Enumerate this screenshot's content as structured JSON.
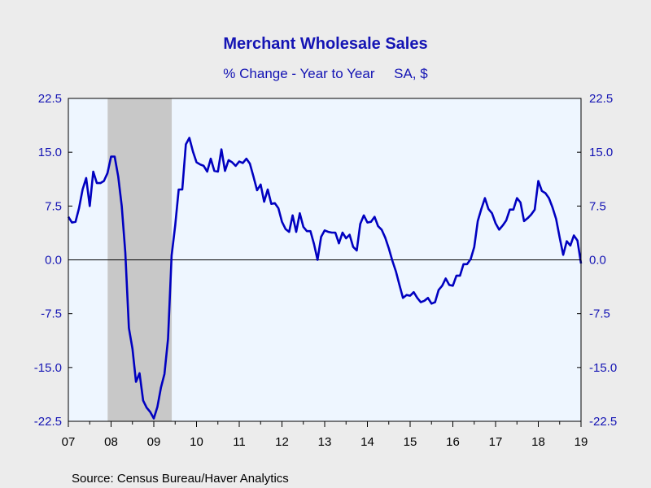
{
  "chart_data": {
    "type": "line",
    "title": "Merchant Wholesale Sales",
    "subtitle": "% Change - Year to Year     SA, $",
    "source": "Source:  Census Bureau/Haver Analytics",
    "ylim": [
      -22.5,
      22.5
    ],
    "yticks": [
      "22.5",
      "15.0",
      "7.5",
      "0.0",
      "-7.5",
      "-15.0",
      "-22.5"
    ],
    "ytick_values": [
      22.5,
      15.0,
      7.5,
      0.0,
      -7.5,
      -15.0,
      -22.5
    ],
    "xlim": [
      2007.0,
      2019.0
    ],
    "xticks": [
      "07",
      "08",
      "09",
      "10",
      "11",
      "12",
      "13",
      "14",
      "15",
      "16",
      "17",
      "18",
      "19"
    ],
    "xtick_values": [
      2007,
      2008,
      2009,
      2010,
      2011,
      2012,
      2013,
      2014,
      2015,
      2016,
      2017,
      2018,
      2019
    ],
    "recession": [
      2007.92,
      2009.42
    ],
    "grid": false,
    "colors": {
      "line": "#0000C0",
      "text": "#1414B4",
      "plot_bg": "#EEF6FF",
      "recession": "#C8C8C8",
      "page_bg": "#ECECEC"
    },
    "series": [
      {
        "x": [
          2007.0,
          2007.083,
          2007.167,
          2007.25,
          2007.333,
          2007.417,
          2007.5,
          2007.583,
          2007.667,
          2007.75,
          2007.833,
          2007.917,
          2008.0,
          2008.083,
          2008.167,
          2008.25,
          2008.333,
          2008.417,
          2008.5,
          2008.583,
          2008.667,
          2008.75,
          2008.833,
          2008.917,
          2009.0,
          2009.083,
          2009.167,
          2009.25,
          2009.333,
          2009.417,
          2009.5,
          2009.583,
          2009.667,
          2009.75,
          2009.833,
          2009.917,
          2010.0,
          2010.083,
          2010.167,
          2010.25,
          2010.333,
          2010.417,
          2010.5,
          2010.583,
          2010.667,
          2010.75,
          2010.833,
          2010.917,
          2011.0,
          2011.083,
          2011.167,
          2011.25,
          2011.333,
          2011.417,
          2011.5,
          2011.583,
          2011.667,
          2011.75,
          2011.833,
          2011.917,
          2012.0,
          2012.083,
          2012.167,
          2012.25,
          2012.333,
          2012.417,
          2012.5,
          2012.583,
          2012.667,
          2012.75,
          2012.833,
          2012.917,
          2013.0,
          2013.083,
          2013.167,
          2013.25,
          2013.333,
          2013.417,
          2013.5,
          2013.583,
          2013.667,
          2013.75,
          2013.833,
          2013.917,
          2014.0,
          2014.083,
          2014.167,
          2014.25,
          2014.333,
          2014.417,
          2014.5,
          2014.583,
          2014.667,
          2014.75,
          2014.833,
          2014.917,
          2015.0,
          2015.083,
          2015.167,
          2015.25,
          2015.333,
          2015.417,
          2015.5,
          2015.583,
          2015.667,
          2015.75,
          2015.833,
          2015.917,
          2016.0,
          2016.083,
          2016.167,
          2016.25,
          2016.333,
          2016.417,
          2016.5,
          2016.583,
          2016.667,
          2016.75,
          2016.833,
          2016.917,
          2017.0,
          2017.083,
          2017.167,
          2017.25,
          2017.333,
          2017.417,
          2017.5,
          2017.583,
          2017.667,
          2017.75,
          2017.833,
          2017.917,
          2018.0,
          2018.083,
          2018.167,
          2018.25,
          2018.333,
          2018.417,
          2018.5,
          2018.583,
          2018.667,
          2018.75,
          2018.833,
          2018.917,
          2019.0
        ],
        "values": [
          6.0,
          5.2,
          5.3,
          7.2,
          9.8,
          11.4,
          7.5,
          12.3,
          10.7,
          10.7,
          11.0,
          12.1,
          14.4,
          14.4,
          11.6,
          7.5,
          1.0,
          -9.5,
          -12.4,
          -17.0,
          -15.8,
          -19.6,
          -20.6,
          -21.2,
          -22.1,
          -20.5,
          -17.8,
          -15.9,
          -11.0,
          0.6,
          4.8,
          9.8,
          9.8,
          16.1,
          17.0,
          15.1,
          13.6,
          13.3,
          13.1,
          12.3,
          14.1,
          12.4,
          12.3,
          15.4,
          12.4,
          13.9,
          13.6,
          13.1,
          13.7,
          13.5,
          14.1,
          13.4,
          11.6,
          9.7,
          10.5,
          8.1,
          9.8,
          7.8,
          7.9,
          7.2,
          5.3,
          4.3,
          3.9,
          6.2,
          3.9,
          6.5,
          4.6,
          4.0,
          4.0,
          2.2,
          0.0,
          3.2,
          4.1,
          3.9,
          3.8,
          3.8,
          2.3,
          3.8,
          3.0,
          3.5,
          1.8,
          1.3,
          5.0,
          6.2,
          5.2,
          5.3,
          6.0,
          4.7,
          4.2,
          3.1,
          1.6,
          -0.1,
          -1.6,
          -3.5,
          -5.3,
          -4.9,
          -5.0,
          -4.5,
          -5.3,
          -5.9,
          -5.7,
          -5.3,
          -6.1,
          -5.9,
          -4.2,
          -3.6,
          -2.6,
          -3.5,
          -3.6,
          -2.2,
          -2.2,
          -0.6,
          -0.6,
          0.1,
          1.8,
          5.4,
          7.1,
          8.6,
          7.1,
          6.5,
          5.1,
          4.2,
          4.8,
          5.5,
          7.0,
          7.0,
          8.6,
          8.0,
          5.4,
          5.8,
          6.3,
          7.0,
          11.0,
          9.6,
          9.3,
          8.6,
          7.3,
          5.7,
          3.1,
          0.7,
          2.6,
          2.0,
          3.4,
          2.7,
          -0.5
        ]
      }
    ]
  }
}
